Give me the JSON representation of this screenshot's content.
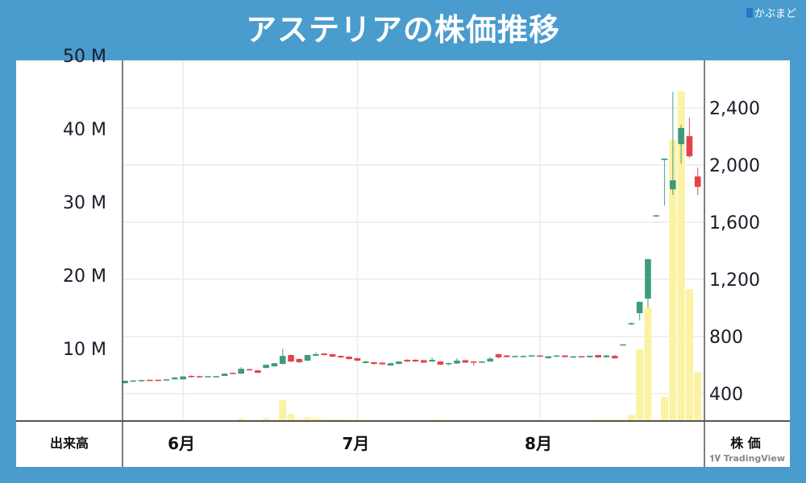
{
  "header": {
    "title": "アステリアの株価推移",
    "logo_text": "かぶまど"
  },
  "footer": {
    "volume_label": "出来高",
    "price_label": "株 価",
    "watermark": "TradingView"
  },
  "colors": {
    "frame": "#4a9cce",
    "up": "#3d9a7f",
    "down": "#e2434c",
    "volume": "#fbf2a2"
  },
  "chart_data": {
    "type": "candlestick",
    "volume_axis": {
      "ticks": [
        "10 M",
        "20 M",
        "30 M",
        "40 M",
        "50 M"
      ],
      "values": [
        10,
        20,
        30,
        40,
        50
      ],
      "unit": "M",
      "range": [
        0,
        49
      ]
    },
    "price_axis": {
      "ticks": [
        "400",
        "800",
        "1,200",
        "1,600",
        "2,000",
        "2,400"
      ],
      "values": [
        400,
        800,
        1200,
        1600,
        2000,
        2400
      ],
      "range": [
        210,
        2730
      ]
    },
    "x_ticks": [
      {
        "label": "6月",
        "index": 7
      },
      {
        "label": "7月",
        "index": 28
      },
      {
        "label": "8月",
        "index": 50
      }
    ],
    "grid": true,
    "candles_ohlcv": [
      [
        473,
        492,
        470,
        490,
        0.1
      ],
      [
        488,
        495,
        486,
        492,
        0.1
      ],
      [
        488,
        498,
        485,
        495,
        0.1
      ],
      [
        497,
        500,
        488,
        490,
        0.1
      ],
      [
        497,
        499,
        488,
        490,
        0.1
      ],
      [
        492,
        502,
        490,
        500,
        0.1
      ],
      [
        500,
        518,
        498,
        512,
        0.2
      ],
      [
        500,
        522,
        498,
        520,
        0.1
      ],
      [
        524,
        528,
        512,
        518,
        0.15
      ],
      [
        522,
        525,
        516,
        518,
        0.1
      ],
      [
        518,
        525,
        516,
        522,
        0.1
      ],
      [
        518,
        524,
        516,
        522,
        0.1
      ],
      [
        524,
        542,
        522,
        540,
        0.15
      ],
      [
        546,
        548,
        536,
        540,
        0.1
      ],
      [
        540,
        585,
        538,
        574,
        0.35
      ],
      [
        571,
        575,
        564,
        566,
        0.1
      ],
      [
        563,
        566,
        544,
        546,
        0.15
      ],
      [
        580,
        604,
        577,
        602,
        0.4
      ],
      [
        591,
        615,
        589,
        613,
        0.2
      ],
      [
        608,
        715,
        605,
        664,
        2.85
      ],
      [
        670,
        673,
        620,
        625,
        0.9
      ],
      [
        642,
        648,
        615,
        620,
        0.3
      ],
      [
        631,
        672,
        629,
        670,
        0.5
      ],
      [
        665,
        690,
        663,
        676,
        0.4
      ],
      [
        681,
        684,
        668,
        670,
        0.3
      ],
      [
        676,
        679,
        655,
        659,
        0.25
      ],
      [
        664,
        668,
        650,
        653,
        0.25
      ],
      [
        659,
        662,
        638,
        642,
        0.2
      ],
      [
        648,
        651,
        628,
        631,
        0.2
      ],
      [
        614,
        630,
        612,
        625,
        0.15
      ],
      [
        620,
        623,
        603,
        608,
        0.15
      ],
      [
        617,
        620,
        603,
        605,
        0.1
      ],
      [
        597,
        616,
        595,
        613,
        0.1
      ],
      [
        608,
        628,
        606,
        625,
        0.15
      ],
      [
        637,
        640,
        622,
        625,
        0.1
      ],
      [
        637,
        640,
        622,
        625,
        0.1
      ],
      [
        634,
        637,
        615,
        617,
        0.15
      ],
      [
        625,
        653,
        623,
        637,
        0.2
      ],
      [
        625,
        628,
        600,
        603,
        0.2
      ],
      [
        611,
        617,
        597,
        614,
        0.1
      ],
      [
        611,
        648,
        609,
        631,
        0.2
      ],
      [
        634,
        637,
        615,
        617,
        0.1
      ],
      [
        625,
        628,
        597,
        617,
        0.1
      ],
      [
        617,
        628,
        615,
        625,
        0.1
      ],
      [
        625,
        656,
        623,
        645,
        0.15
      ],
      [
        676,
        680,
        645,
        654,
        0.15
      ],
      [
        667,
        670,
        654,
        656,
        0.1
      ],
      [
        659,
        667,
        657,
        664,
        0.1
      ],
      [
        659,
        667,
        657,
        664,
        0.1
      ],
      [
        661,
        670,
        659,
        668,
        0.1
      ],
      [
        667,
        670,
        657,
        659,
        0.1
      ],
      [
        648,
        664,
        646,
        661,
        0.15
      ],
      [
        659,
        670,
        657,
        667,
        0.1
      ],
      [
        667,
        670,
        654,
        656,
        0.1
      ],
      [
        653,
        664,
        651,
        661,
        0.1
      ],
      [
        662,
        665,
        654,
        656,
        0.1
      ],
      [
        655,
        668,
        653,
        665,
        0.15
      ],
      [
        670,
        673,
        651,
        653,
        0.2
      ],
      [
        655,
        672,
        653,
        667,
        0.2
      ],
      [
        664,
        672,
        645,
        647,
        0.2
      ],
      [
        741,
        746,
        740,
        745,
        0.2
      ],
      [
        886,
        897,
        880,
        893,
        0.8
      ],
      [
        963,
        1045,
        912,
        1042,
        9.8
      ],
      [
        1065,
        1343,
        1003,
        1341,
        15.5
      ],
      [
        1640,
        1650,
        1638,
        1648,
        0.2
      ],
      [
        2035,
        2045,
        1715,
        2045,
        3.3
      ],
      [
        1830,
        2512,
        1791,
        1893,
        38.4
      ],
      [
        2146,
        2282,
        2011,
        2259,
        45
      ],
      [
        2202,
        2331,
        2050,
        2061,
        18
      ],
      [
        1920,
        1982,
        1791,
        1847,
        6.7
      ]
    ]
  }
}
